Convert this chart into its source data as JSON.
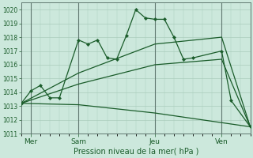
{
  "background_color": "#cce8dc",
  "grid_color": "#aaccbb",
  "line_color": "#1a5c2a",
  "vline_color": "#607870",
  "xlabel": "Pression niveau de la mer( hPa )",
  "ylim": [
    1011,
    1020.5
  ],
  "yticks": [
    1011,
    1012,
    1013,
    1014,
    1015,
    1016,
    1017,
    1018,
    1019,
    1020
  ],
  "xlim": [
    0,
    12
  ],
  "xtick_labels": [
    "Mer",
    "Sam",
    "Jeu",
    "Ven"
  ],
  "xtick_positions": [
    0.5,
    3.0,
    7.0,
    10.5
  ],
  "vline_positions": [
    0.5,
    3.0,
    7.0,
    10.5
  ],
  "series1_x": [
    0.0,
    0.5,
    1.0,
    1.5,
    2.0,
    3.0,
    3.5,
    4.0,
    4.5,
    5.0,
    5.5,
    6.0,
    6.5,
    7.0,
    7.5,
    8.0,
    8.5,
    9.0,
    10.5,
    11.0,
    12.0
  ],
  "series1_y": [
    1013.2,
    1014.1,
    1014.5,
    1013.6,
    1013.6,
    1017.8,
    1017.5,
    1017.8,
    1016.5,
    1016.4,
    1018.1,
    1020.0,
    1019.4,
    1019.3,
    1019.3,
    1018.0,
    1016.4,
    1016.5,
    1017.0,
    1013.4,
    1011.5
  ],
  "series2_x": [
    0.0,
    3.0,
    7.0,
    10.5,
    12.0
  ],
  "series2_y": [
    1013.2,
    1015.4,
    1017.5,
    1018.0,
    1011.5
  ],
  "series3_x": [
    0.0,
    3.0,
    7.0,
    10.5,
    12.0
  ],
  "series3_y": [
    1013.2,
    1014.6,
    1016.0,
    1016.4,
    1011.5
  ],
  "series4_x": [
    0.0,
    3.0,
    7.0,
    10.5,
    12.0
  ],
  "series4_y": [
    1013.2,
    1013.1,
    1012.5,
    1011.8,
    1011.5
  ]
}
